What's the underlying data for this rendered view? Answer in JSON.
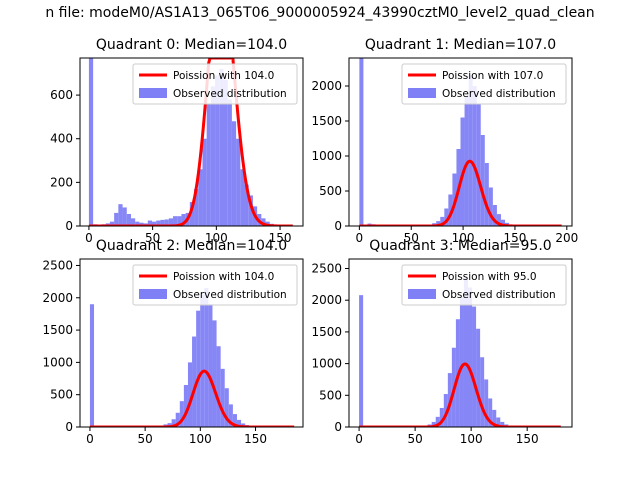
{
  "suptitle": "n file: modeM0/AS1A13_065T06_9000005924_43990cztM0_level2_quad_clean",
  "colors": {
    "hist": "#7f7ff6",
    "fit": "#ff0000"
  },
  "chart_data": [
    {
      "type": "bar",
      "title": "Quadrant 0: Median=104.0",
      "xlim": [
        -7,
        168
      ],
      "ylim": [
        0,
        770
      ],
      "xticks": [
        0,
        50,
        100,
        150
      ],
      "yticks": [
        0,
        200,
        400,
        600
      ],
      "legend": {
        "placement": "upper right",
        "entries": [
          "Poission with 104.0",
          "Observed distribution"
        ]
      },
      "bin_width": 3.3,
      "bins": [
        [
          0,
          770
        ],
        [
          3.3,
          8
        ],
        [
          6.6,
          6
        ],
        [
          9.9,
          8
        ],
        [
          13.2,
          12
        ],
        [
          16.5,
          20
        ],
        [
          19.8,
          60
        ],
        [
          23.1,
          100
        ],
        [
          26.4,
          85
        ],
        [
          29.7,
          55
        ],
        [
          33,
          35
        ],
        [
          36.3,
          20
        ],
        [
          39.6,
          15
        ],
        [
          42.9,
          12
        ],
        [
          46.2,
          25
        ],
        [
          49.5,
          20
        ],
        [
          52.8,
          25
        ],
        [
          56.1,
          28
        ],
        [
          59.4,
          30
        ],
        [
          62.7,
          35
        ],
        [
          66,
          45
        ],
        [
          69.3,
          45
        ],
        [
          72.6,
          55
        ],
        [
          75.9,
          60
        ],
        [
          79.2,
          110
        ],
        [
          82.5,
          170
        ],
        [
          85.8,
          260
        ],
        [
          89.1,
          400
        ],
        [
          92.4,
          560
        ],
        [
          95.7,
          640
        ],
        [
          99,
          690
        ],
        [
          102.3,
          720
        ],
        [
          105.6,
          670
        ],
        [
          108.9,
          580
        ],
        [
          112.2,
          480
        ],
        [
          115.5,
          400
        ],
        [
          118.8,
          260
        ],
        [
          122.1,
          190
        ],
        [
          125.4,
          140
        ],
        [
          128.7,
          90
        ],
        [
          132,
          55
        ],
        [
          135.3,
          35
        ],
        [
          138.6,
          20
        ],
        [
          141.9,
          10
        ],
        [
          145.2,
          5
        ],
        [
          148.5,
          2
        ],
        [
          151.8,
          1
        ]
      ],
      "poisson_mean": 104.0,
      "poisson_scale": 29880,
      "fit_xrange": [
        0,
        160
      ]
    },
    {
      "type": "bar",
      "title": "Quadrant 1: Median=107.0",
      "xlim": [
        -10,
        205
      ],
      "ylim": [
        0,
        2400
      ],
      "xticks": [
        0,
        50,
        100,
        150,
        200
      ],
      "yticks": [
        0,
        500,
        1000,
        1500,
        2000
      ],
      "legend": {
        "placement": "upper right",
        "entries": [
          "Poission with 107.0",
          "Observed distribution"
        ]
      },
      "bin_width": 3.9,
      "bins": [
        [
          0,
          2400
        ],
        [
          3.9,
          20
        ],
        [
          7.8,
          35
        ],
        [
          11.7,
          25
        ],
        [
          15.6,
          10
        ],
        [
          19.5,
          5
        ],
        [
          62.4,
          10
        ],
        [
          66.3,
          20
        ],
        [
          70.2,
          40
        ],
        [
          74.1,
          70
        ],
        [
          78,
          130
        ],
        [
          81.9,
          250
        ],
        [
          85.8,
          450
        ],
        [
          89.7,
          750
        ],
        [
          93.6,
          1100
        ],
        [
          97.5,
          1550
        ],
        [
          101.4,
          1850
        ],
        [
          105.3,
          2150
        ],
        [
          109.2,
          2000
        ],
        [
          113.1,
          1750
        ],
        [
          117,
          1300
        ],
        [
          120.9,
          900
        ],
        [
          124.8,
          550
        ],
        [
          128.7,
          300
        ],
        [
          132.6,
          170
        ],
        [
          136.5,
          90
        ],
        [
          140.4,
          45
        ],
        [
          144.3,
          20
        ],
        [
          148.2,
          10
        ]
      ],
      "poisson_mean": 107.0,
      "poisson_scale": 24000,
      "fit_xrange": [
        0,
        195
      ]
    },
    {
      "type": "bar",
      "title": "Quadrant 2: Median=104.0",
      "xlim": [
        -9,
        193
      ],
      "ylim": [
        0,
        2600
      ],
      "xticks": [
        0,
        50,
        100,
        150
      ],
      "yticks": [
        0,
        500,
        1000,
        1500,
        2000,
        2500
      ],
      "legend": {
        "placement": "upper right",
        "entries": [
          "Poission with 104.0",
          "Observed distribution"
        ]
      },
      "bin_width": 3.7,
      "bins": [
        [
          0,
          1900
        ],
        [
          3.7,
          15
        ],
        [
          7.4,
          10
        ],
        [
          11.1,
          5
        ],
        [
          59.2,
          10
        ],
        [
          62.9,
          20
        ],
        [
          66.6,
          40
        ],
        [
          70.3,
          60
        ],
        [
          74,
          120
        ],
        [
          77.7,
          220
        ],
        [
          81.4,
          400
        ],
        [
          85.1,
          650
        ],
        [
          88.8,
          1000
        ],
        [
          92.5,
          1400
        ],
        [
          96.2,
          1800
        ],
        [
          99.9,
          2050
        ],
        [
          103.6,
          2150
        ],
        [
          107.3,
          1900
        ],
        [
          111,
          1650
        ],
        [
          114.7,
          1250
        ],
        [
          118.4,
          900
        ],
        [
          122.1,
          600
        ],
        [
          125.8,
          350
        ],
        [
          129.5,
          200
        ],
        [
          133.2,
          110
        ],
        [
          136.9,
          55
        ],
        [
          140.6,
          30
        ],
        [
          144.3,
          15
        ],
        [
          148,
          8
        ]
      ],
      "poisson_mean": 104.0,
      "poisson_scale": 22100,
      "fit_xrange": [
        0,
        185
      ]
    },
    {
      "type": "bar",
      "title": "Quadrant 3: Median=95.0",
      "xlim": [
        -9,
        190
      ],
      "ylim": [
        0,
        2650
      ],
      "xticks": [
        0,
        50,
        100,
        150
      ],
      "yticks": [
        0,
        500,
        1000,
        1500,
        2000,
        2500
      ],
      "legend": {
        "placement": "upper right",
        "entries": [
          "Poission with 95.0",
          "Observed distribution"
        ]
      },
      "bin_width": 3.6,
      "bins": [
        [
          0,
          2080
        ],
        [
          3.6,
          15
        ],
        [
          7.2,
          10
        ],
        [
          10.8,
          5
        ],
        [
          54,
          10
        ],
        [
          57.6,
          20
        ],
        [
          61.2,
          40
        ],
        [
          64.8,
          80
        ],
        [
          68.4,
          160
        ],
        [
          72,
          300
        ],
        [
          75.6,
          520
        ],
        [
          79.2,
          850
        ],
        [
          82.8,
          1250
        ],
        [
          86.4,
          1700
        ],
        [
          90,
          2050
        ],
        [
          93.6,
          2350
        ],
        [
          97.2,
          2200
        ],
        [
          100.8,
          1900
        ],
        [
          104.4,
          1550
        ],
        [
          108,
          1100
        ],
        [
          111.6,
          750
        ],
        [
          115.2,
          450
        ],
        [
          118.8,
          270
        ],
        [
          122.4,
          150
        ],
        [
          126,
          80
        ],
        [
          129.6,
          40
        ],
        [
          133.2,
          20
        ],
        [
          136.8,
          10
        ]
      ],
      "poisson_mean": 95.0,
      "poisson_scale": 24300,
      "fit_xrange": [
        0,
        180
      ]
    }
  ]
}
